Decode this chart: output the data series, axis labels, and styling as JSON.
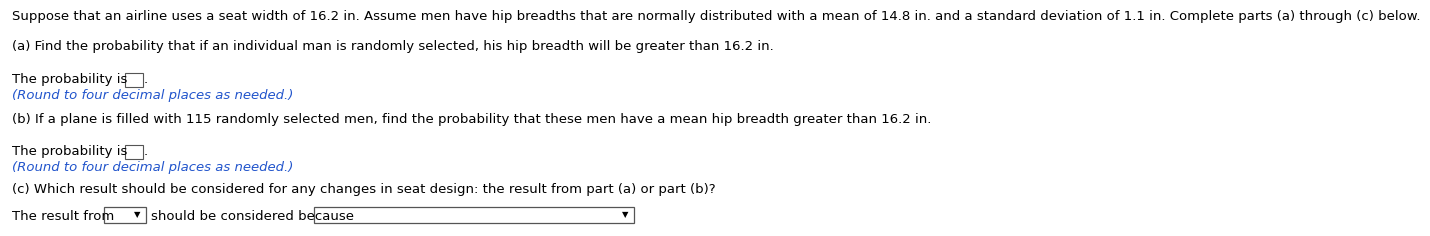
{
  "bg_color": "#ffffff",
  "line1": "Suppose that an airline uses a seat width of 16.2 in. Assume men have hip breadths that are normally distributed with a mean of 14.8 in. and a standard deviation of 1.1 in. Complete parts (a) through (c) below.",
  "part_a_label": "(a) Find the probability that if an individual man is randomly selected, his hip breadth will be greater than 16.2 in.",
  "prob_label": "The probability is",
  "round_note": "(Round to four decimal places as needed.)",
  "part_b_label": "(b) If a plane is filled with 115 randomly selected men, find the probability that these men have a mean hip breadth greater than 16.2 in.",
  "part_c_label": "(c) Which result should be considered for any changes in seat design: the result from part (a) or part (b)?",
  "part_c_prefix": "The result from",
  "part_c_middle": "should be considered because",
  "text_color": "#000000",
  "blue_color": "#2255cc",
  "box_color": "#ffffff",
  "box_edge_color": "#555555",
  "divider_color": "#aaaaaa",
  "font_size_main": 9.5,
  "font_size_note": 9.5
}
